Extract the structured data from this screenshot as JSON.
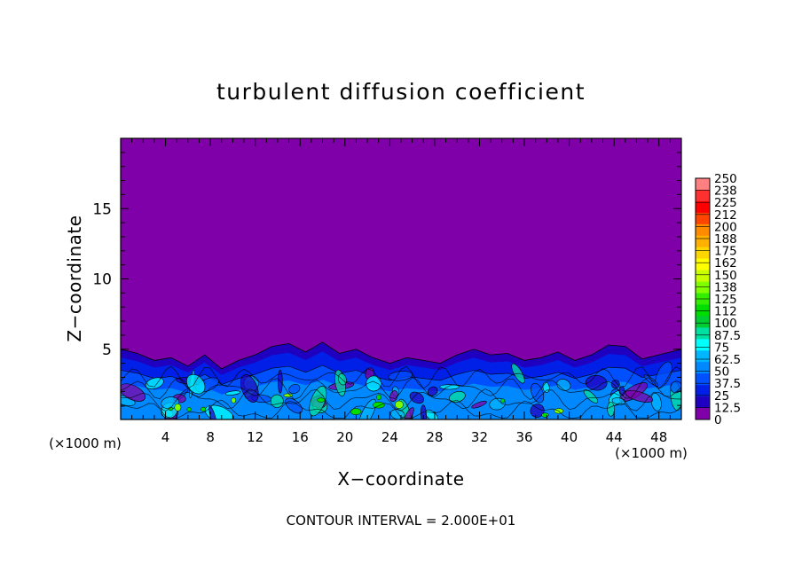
{
  "chart_data": {
    "type": "contour",
    "title": "turbulent diffusion coefficient",
    "xlabel": "X−coordinate",
    "ylabel": "Z−coordinate",
    "x_unit_left": "(×1000 m)",
    "x_unit_right": "(×1000 m)",
    "footer": "CONTOUR INTERVAL = 2.000E+01",
    "xlim": [
      0,
      50
    ],
    "ylim": [
      0,
      20
    ],
    "x_ticks": [
      4,
      8,
      12,
      16,
      20,
      24,
      28,
      32,
      36,
      40,
      44,
      48
    ],
    "y_ticks": [
      5,
      10,
      15
    ],
    "background_color": "#7f00a8",
    "boundary_layer_top": [
      [
        0,
        5.0
      ],
      [
        1.5,
        4.7
      ],
      [
        3,
        4.2
      ],
      [
        4.5,
        4.4
      ],
      [
        6,
        3.8
      ],
      [
        7.5,
        4.6
      ],
      [
        9,
        3.6
      ],
      [
        10.5,
        4.2
      ],
      [
        12,
        4.6
      ],
      [
        13.5,
        5.2
      ],
      [
        15,
        5.4
      ],
      [
        16.5,
        4.8
      ],
      [
        18,
        5.5
      ],
      [
        19.5,
        4.7
      ],
      [
        21,
        5.0
      ],
      [
        22.5,
        4.4
      ],
      [
        24,
        4.0
      ],
      [
        25.5,
        4.4
      ],
      [
        27,
        4.2
      ],
      [
        28.5,
        4.0
      ],
      [
        30,
        4.6
      ],
      [
        31.5,
        5.0
      ],
      [
        33,
        4.6
      ],
      [
        34.5,
        4.7
      ],
      [
        36,
        4.2
      ],
      [
        37.5,
        4.4
      ],
      [
        39,
        4.8
      ],
      [
        40.5,
        4.2
      ],
      [
        42,
        4.6
      ],
      [
        43.5,
        5.3
      ],
      [
        45,
        5.2
      ],
      [
        46.5,
        4.3
      ],
      [
        48,
        4.6
      ],
      [
        50,
        5.0
      ]
    ],
    "colorbar": {
      "labels": [
        "250",
        "238",
        "225",
        "212",
        "200",
        "188",
        "175",
        "162",
        "150",
        "138",
        "125",
        "112",
        "100",
        "87.5",
        "75",
        "62.5",
        "50",
        "37.5",
        "25",
        "12.5",
        "0"
      ],
      "colors": [
        "#ff8080",
        "#ff3030",
        "#ff0000",
        "#ff4500",
        "#ff8c00",
        "#ffb000",
        "#ffd700",
        "#ffff00",
        "#c8ff00",
        "#7fff00",
        "#33ee00",
        "#00dd00",
        "#00cc33",
        "#00e0a0",
        "#00ffff",
        "#00b7ff",
        "#0088ff",
        "#0050ff",
        "#0020e8",
        "#2000c0",
        "#7f00a8"
      ]
    }
  }
}
